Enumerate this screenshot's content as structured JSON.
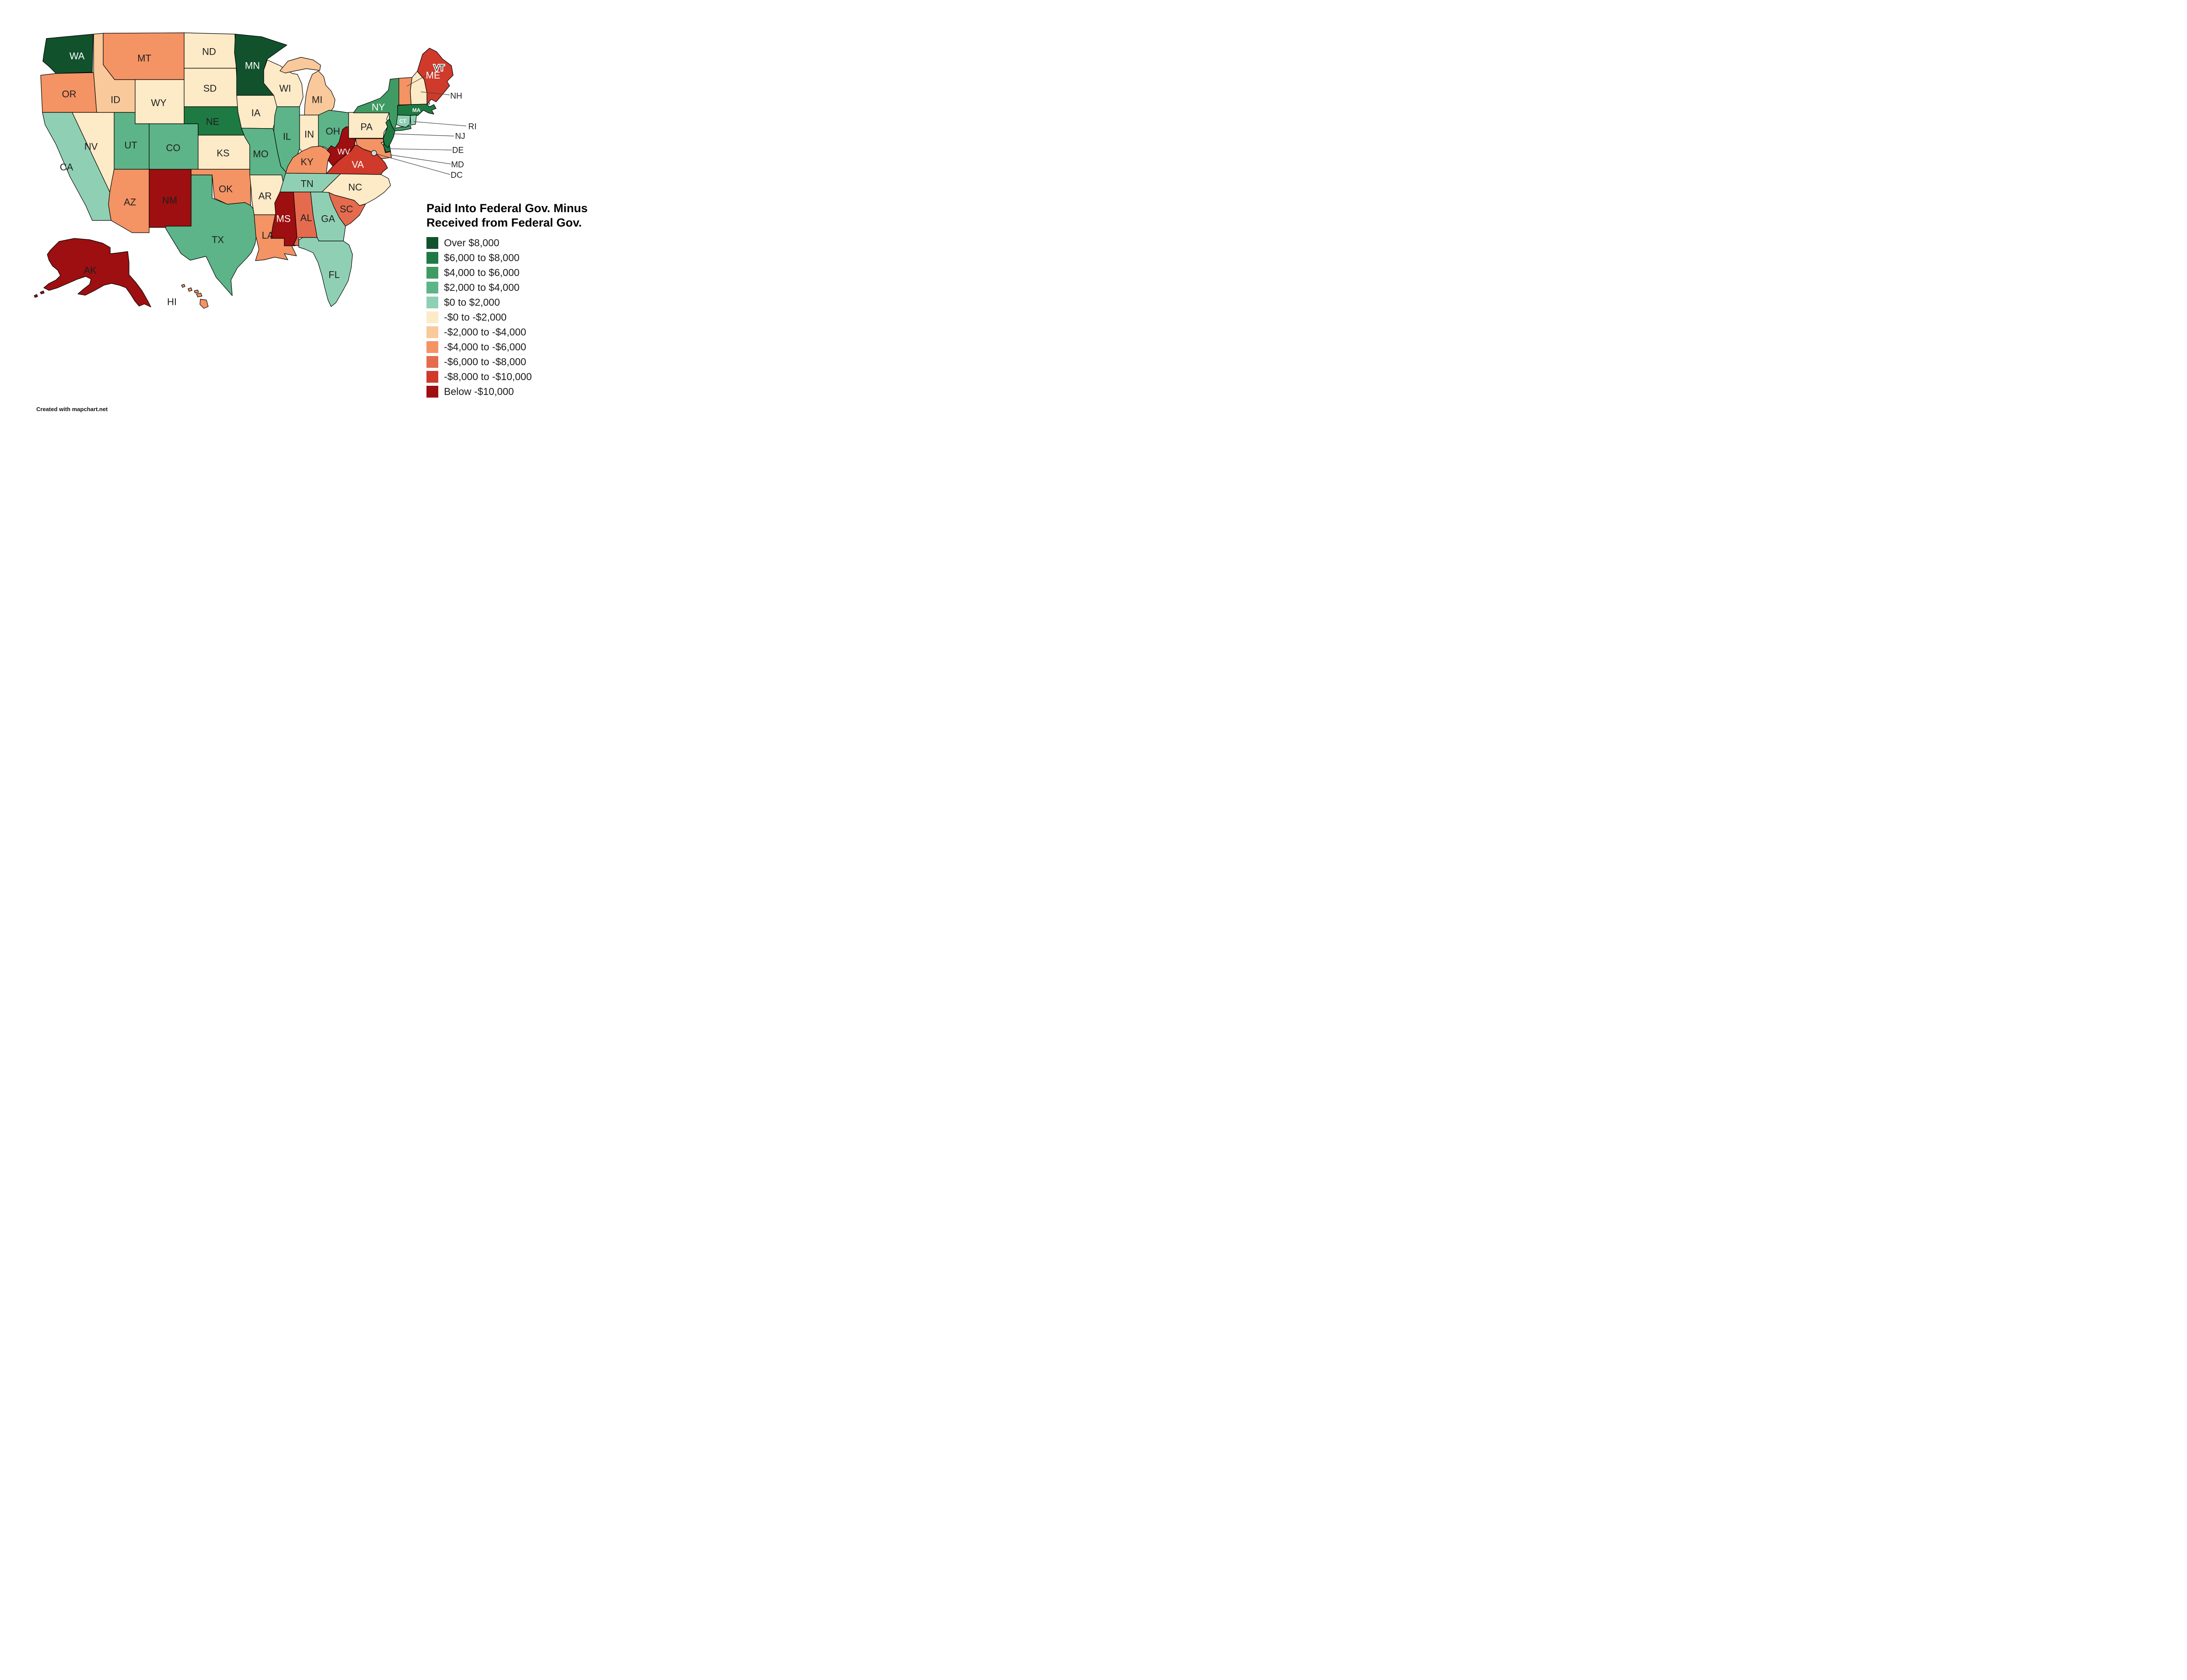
{
  "title": {
    "line1": "Paid Into Federal Gov. Minus",
    "line2": "Received from Federal Gov."
  },
  "attribution": "Created with mapchart.net",
  "palette": {
    "over_8k": "#11522d",
    "6k_8k": "#1e7a43",
    "4k_6k": "#3f9b63",
    "2k_4k": "#5cb488",
    "0_2k": "#8fd0b4",
    "neg0_2k": "#fdeac7",
    "neg2_4k": "#f9c99b",
    "neg4_6k": "#f49364",
    "neg6_8k": "#e56b4f",
    "neg8_10k": "#cf3a2a",
    "below_neg10k": "#9d0f10",
    "no_data": "#d8d8d8"
  },
  "legend": {
    "items": [
      {
        "label": "Over $8,000",
        "color": "over_8k"
      },
      {
        "label": "$6,000 to $8,000",
        "color": "6k_8k"
      },
      {
        "label": "$4,000 to $6,000",
        "color": "4k_6k"
      },
      {
        "label": "$2,000 to $4,000",
        "color": "2k_4k"
      },
      {
        "label": "$0 to $2,000",
        "color": "0_2k"
      },
      {
        "label": "-$0 to -$2,000",
        "color": "neg0_2k"
      },
      {
        "label": "-$2,000 to -$4,000",
        "color": "neg2_4k"
      },
      {
        "label": "-$4,000 to -$6,000",
        "color": "neg4_6k"
      },
      {
        "label": "-$6,000 to -$8,000",
        "color": "neg6_8k"
      },
      {
        "label": "-$8,000 to -$10,000",
        "color": "neg8_10k"
      },
      {
        "label": "Below -$10,000",
        "color": "below_neg10k"
      }
    ]
  },
  "states": {
    "WA": {
      "label": "WA",
      "category": "over_8k"
    },
    "OR": {
      "label": "OR",
      "category": "neg4_6k"
    },
    "CA": {
      "label": "CA",
      "category": "0_2k"
    },
    "NV": {
      "label": "NV",
      "category": "neg0_2k"
    },
    "ID": {
      "label": "ID",
      "category": "neg2_4k"
    },
    "MT": {
      "label": "MT",
      "category": "neg4_6k"
    },
    "WY": {
      "label": "WY",
      "category": "neg0_2k"
    },
    "UT": {
      "label": "UT",
      "category": "2k_4k"
    },
    "CO": {
      "label": "CO",
      "category": "2k_4k"
    },
    "AZ": {
      "label": "AZ",
      "category": "neg4_6k"
    },
    "NM": {
      "label": "NM",
      "category": "below_neg10k"
    },
    "ND": {
      "label": "ND",
      "category": "neg0_2k"
    },
    "SD": {
      "label": "SD",
      "category": "neg0_2k"
    },
    "NE": {
      "label": "NE",
      "category": "6k_8k"
    },
    "KS": {
      "label": "KS",
      "category": "neg0_2k"
    },
    "OK": {
      "label": "OK",
      "category": "neg4_6k"
    },
    "TX": {
      "label": "TX",
      "category": "2k_4k"
    },
    "MN": {
      "label": "MN",
      "category": "over_8k"
    },
    "IA": {
      "label": "IA",
      "category": "neg0_2k"
    },
    "MO": {
      "label": "MO",
      "category": "2k_4k"
    },
    "AR": {
      "label": "AR",
      "category": "neg0_2k"
    },
    "LA": {
      "label": "LA",
      "category": "neg4_6k"
    },
    "WI": {
      "label": "WI",
      "category": "neg0_2k"
    },
    "IL": {
      "label": "IL",
      "category": "2k_4k"
    },
    "IN": {
      "label": "IN",
      "category": "neg0_2k"
    },
    "MI": {
      "label": "MI",
      "category": "neg2_4k"
    },
    "OH": {
      "label": "OH",
      "category": "2k_4k"
    },
    "KY": {
      "label": "KY",
      "category": "neg4_6k"
    },
    "TN": {
      "label": "TN",
      "category": "0_2k"
    },
    "MS": {
      "label": "MS",
      "category": "below_neg10k"
    },
    "AL": {
      "label": "AL",
      "category": "neg6_8k"
    },
    "GA": {
      "label": "GA",
      "category": "0_2k"
    },
    "FL": {
      "label": "FL",
      "category": "0_2k"
    },
    "SC": {
      "label": "SC",
      "category": "neg6_8k"
    },
    "NC": {
      "label": "NC",
      "category": "neg0_2k"
    },
    "VA": {
      "label": "VA",
      "category": "neg8_10k"
    },
    "WV": {
      "label": "WV",
      "category": "below_neg10k"
    },
    "PA": {
      "label": "PA",
      "category": "neg0_2k"
    },
    "NY": {
      "label": "NY",
      "category": "4k_6k"
    },
    "NJ": {
      "label": "NJ",
      "category": "6k_8k"
    },
    "DE": {
      "label": "DE",
      "category": "6k_8k"
    },
    "MD": {
      "label": "MD",
      "category": "neg4_6k"
    },
    "DC": {
      "label": "DC",
      "category": "no_data"
    },
    "VT": {
      "label": "VT",
      "category": "neg4_6k"
    },
    "NH": {
      "label": "NH",
      "category": "neg0_2k"
    },
    "ME": {
      "label": "ME",
      "category": "neg8_10k"
    },
    "MA": {
      "label": "MA",
      "category": "6k_8k"
    },
    "CT": {
      "label": "CT",
      "category": "0_2k"
    },
    "RI": {
      "label": "RI",
      "category": "0_2k"
    },
    "AK": {
      "label": "AK",
      "category": "below_neg10k"
    },
    "HI": {
      "label": "HI",
      "category": "neg4_6k"
    }
  }
}
